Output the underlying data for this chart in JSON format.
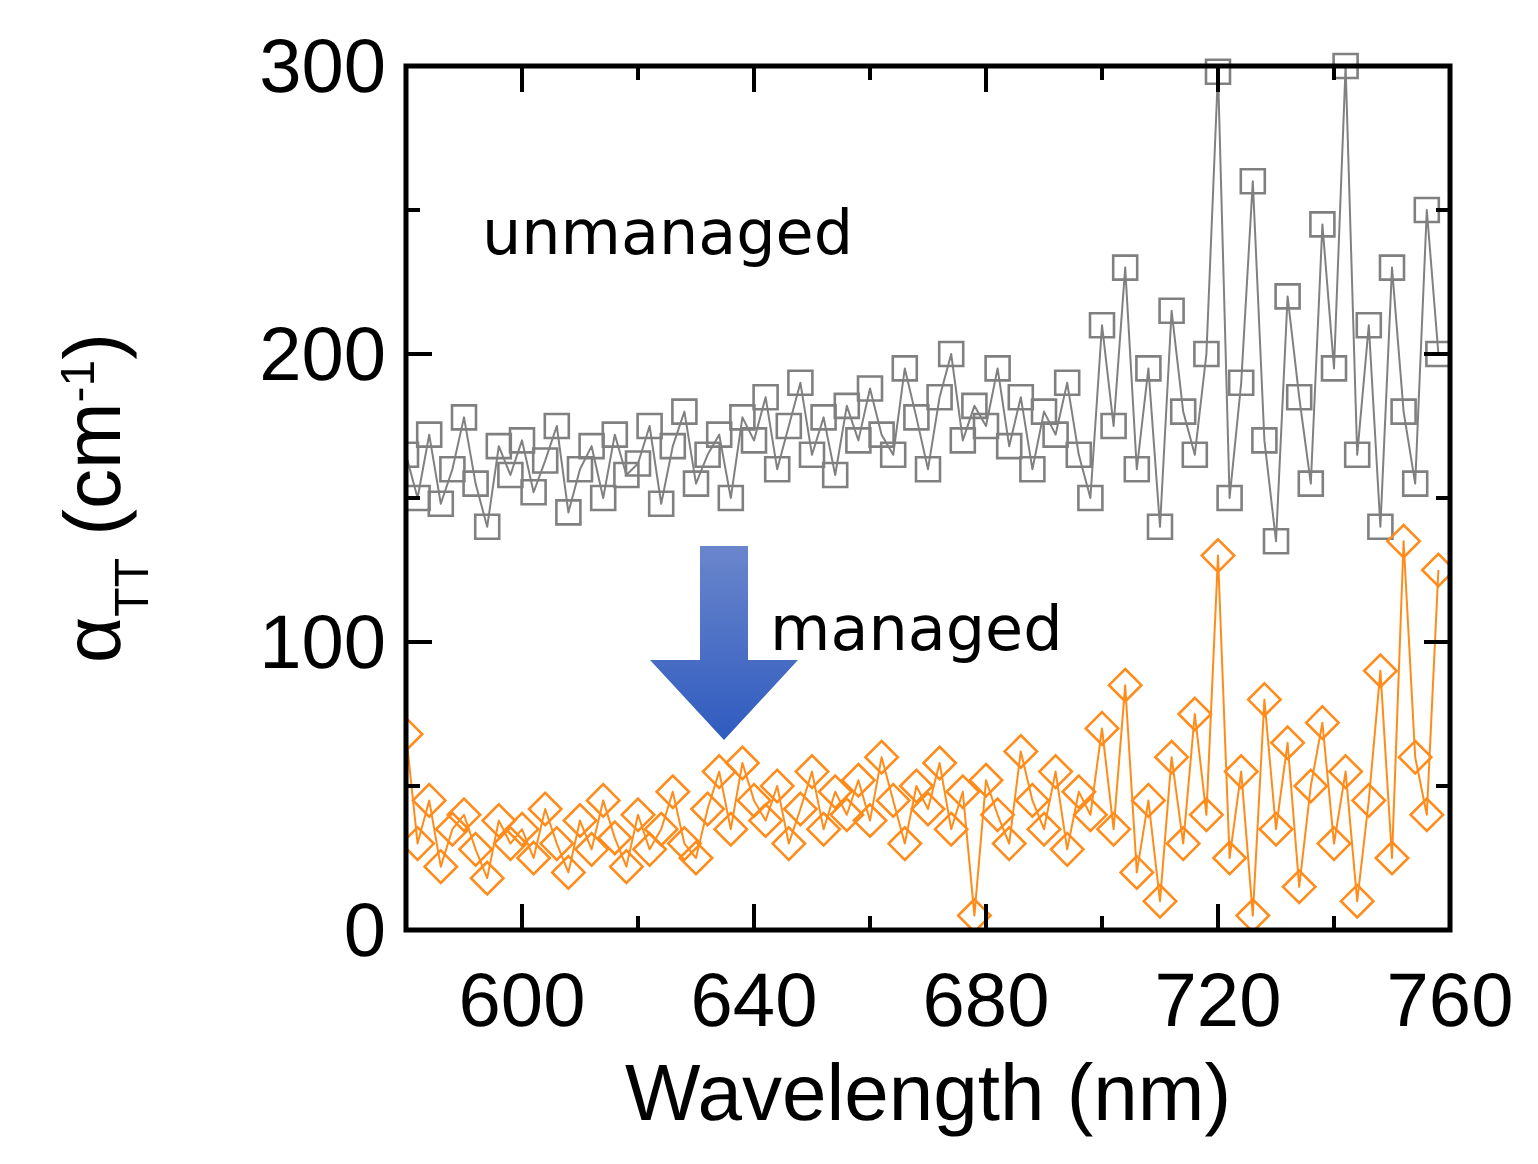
{
  "chart_data": {
    "type": "line",
    "xlabel": "Wavelength (nm)",
    "ylabel": "α$_{TT}$ (cm$^{-1}$)",
    "xlim": [
      580,
      760
    ],
    "ylim": [
      0,
      300
    ],
    "xticks": [
      600,
      {
        "value": 620,
        "label": null
      },
      640,
      {
        "value": 660,
        "label": null
      },
      680,
      {
        "value": 700,
        "label": null
      },
      720,
      {
        "value": 740,
        "label": null
      },
      760
    ],
    "yticks": [
      0,
      {
        "value": 50,
        "label": null
      },
      100,
      {
        "value": 150,
        "label": null
      },
      200,
      {
        "value": 250,
        "label": null
      },
      300
    ],
    "grid": false,
    "line_style": "solid",
    "x": [
      580,
      582,
      584,
      586,
      588,
      590,
      592,
      594,
      596,
      598,
      600,
      602,
      604,
      606,
      608,
      610,
      612,
      614,
      616,
      618,
      620,
      622,
      624,
      626,
      628,
      630,
      632,
      634,
      636,
      638,
      640,
      642,
      644,
      646,
      648,
      650,
      652,
      654,
      656,
      658,
      660,
      662,
      664,
      666,
      668,
      670,
      672,
      674,
      676,
      678,
      680,
      682,
      684,
      686,
      688,
      690,
      692,
      694,
      696,
      698,
      700,
      702,
      704,
      706,
      708,
      710,
      712,
      714,
      716,
      718,
      720,
      722,
      724,
      726,
      728,
      730,
      732,
      734,
      736,
      738,
      740,
      742,
      744,
      746,
      748,
      750,
      752,
      754,
      756,
      758
    ],
    "series": [
      {
        "name": "unmanaged",
        "color": "#808080",
        "marker": "square",
        "values": [
          165,
          150,
          172,
          148,
          160,
          178,
          155,
          140,
          168,
          158,
          170,
          152,
          163,
          175,
          145,
          160,
          168,
          150,
          172,
          158,
          162,
          175,
          148,
          168,
          180,
          155,
          165,
          172,
          150,
          178,
          170,
          185,
          160,
          175,
          190,
          165,
          178,
          158,
          182,
          170,
          188,
          172,
          165,
          195,
          178,
          160,
          185,
          200,
          170,
          182,
          175,
          195,
          168,
          185,
          160,
          180,
          172,
          190,
          165,
          150,
          210,
          175,
          230,
          160,
          195,
          140,
          215,
          180,
          165,
          200,
          298,
          150,
          190,
          260,
          170,
          135,
          220,
          185,
          155,
          245,
          195,
          300,
          165,
          210,
          140,
          230,
          180,
          155,
          250,
          200
        ]
      },
      {
        "name": "managed",
        "color": "#ff8c1a",
        "marker": "diamond",
        "values": [
          68,
          30,
          45,
          22,
          35,
          40,
          28,
          18,
          38,
          30,
          35,
          25,
          42,
          30,
          20,
          38,
          28,
          45,
          32,
          22,
          40,
          28,
          35,
          48,
          30,
          25,
          42,
          55,
          35,
          58,
          45,
          38,
          50,
          30,
          42,
          55,
          35,
          48,
          40,
          52,
          38,
          60,
          45,
          30,
          50,
          42,
          58,
          35,
          48,
          5,
          52,
          40,
          30,
          62,
          45,
          35,
          55,
          28,
          48,
          40,
          70,
          35,
          85,
          20,
          45,
          10,
          60,
          30,
          75,
          40,
          130,
          25,
          55,
          5,
          80,
          35,
          65,
          15,
          50,
          72,
          30,
          55,
          10,
          45,
          90,
          25,
          135,
          60,
          40,
          125
        ]
      }
    ]
  }
}
